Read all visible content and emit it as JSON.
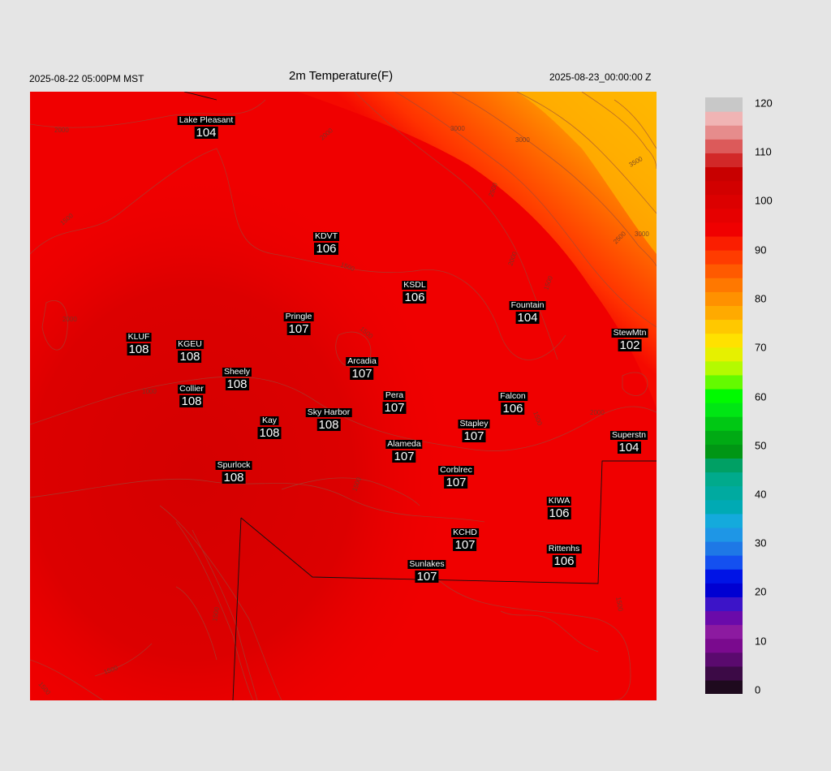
{
  "header": {
    "title": "2m Temperature(F)",
    "left_time": "2025-08-22 05:00PM MST",
    "right_time": "2025-08-23_00:00:00 Z"
  },
  "colors": {
    "background": "#e5e5e5",
    "dominant": "#f00000",
    "warm_core": "#d90000",
    "cool_northeast": [
      "#ff3c00",
      "#ff6a00",
      "#ff9400",
      "#ffbc00"
    ]
  },
  "stations": [
    {
      "name": "Lake Pleasant",
      "value": "104"
    },
    {
      "name": "KDVT",
      "value": "106"
    },
    {
      "name": "KSDL",
      "value": "106"
    },
    {
      "name": "Fountain",
      "value": "104"
    },
    {
      "name": "Pringle",
      "value": "107"
    },
    {
      "name": "KLUF",
      "value": "108"
    },
    {
      "name": "KGEU",
      "value": "108"
    },
    {
      "name": "StewMtn",
      "value": "102"
    },
    {
      "name": "Arcadia",
      "value": "107"
    },
    {
      "name": "Sheely",
      "value": "108"
    },
    {
      "name": "Collier",
      "value": "108"
    },
    {
      "name": "Pera",
      "value": "107"
    },
    {
      "name": "Falcon",
      "value": "106"
    },
    {
      "name": "Kay",
      "value": "108"
    },
    {
      "name": "Sky Harbor",
      "value": "108"
    },
    {
      "name": "Stapley",
      "value": "107"
    },
    {
      "name": "Superstn",
      "value": "104"
    },
    {
      "name": "Alameda",
      "value": "107"
    },
    {
      "name": "Spurlock",
      "value": "108"
    },
    {
      "name": "Corblrec",
      "value": "107"
    },
    {
      "name": "KIWA",
      "value": "106"
    },
    {
      "name": "KCHD",
      "value": "107"
    },
    {
      "name": "Rittenhs",
      "value": "106"
    },
    {
      "name": "Sunlakes",
      "value": "107"
    }
  ],
  "contour_labels": [
    "2000",
    "2000",
    "1500",
    "1500",
    "1500",
    "1000",
    "1500",
    "2000",
    "2500",
    "3000",
    "3000",
    "3500",
    "3000",
    "2500",
    "2000",
    "1500",
    "1500",
    "2000",
    "1500",
    "1500",
    "1500",
    "1500"
  ],
  "colorbar": {
    "ticks": [
      "0",
      "10",
      "20",
      "30",
      "40",
      "50",
      "60",
      "70",
      "80",
      "90",
      "100",
      "110",
      "120"
    ],
    "colors": [
      "#1e0a1e",
      "#3c0a46",
      "#5a0a6e",
      "#7a0a8e",
      "#8c1aa0",
      "#6a0aaa",
      "#3c14c8",
      "#0000d2",
      "#0014e6",
      "#1450f0",
      "#1e78e6",
      "#1e96e6",
      "#14aadc",
      "#00aab4",
      "#00aaa0",
      "#00aa8c",
      "#00a064",
      "#009614",
      "#00aa14",
      "#00c814",
      "#00e614",
      "#00fa00",
      "#64fa00",
      "#b4fa00",
      "#e6f000",
      "#ffe100",
      "#ffc800",
      "#ffaa00",
      "#ff9100",
      "#ff7800",
      "#ff5a00",
      "#ff3c00",
      "#fa1e00",
      "#f00000",
      "#e60000",
      "#dc0000",
      "#d20000",
      "#c80000",
      "#d22828",
      "#dc5a5a",
      "#e68c8c",
      "#f0b4b4",
      "#c8c8c8"
    ]
  }
}
